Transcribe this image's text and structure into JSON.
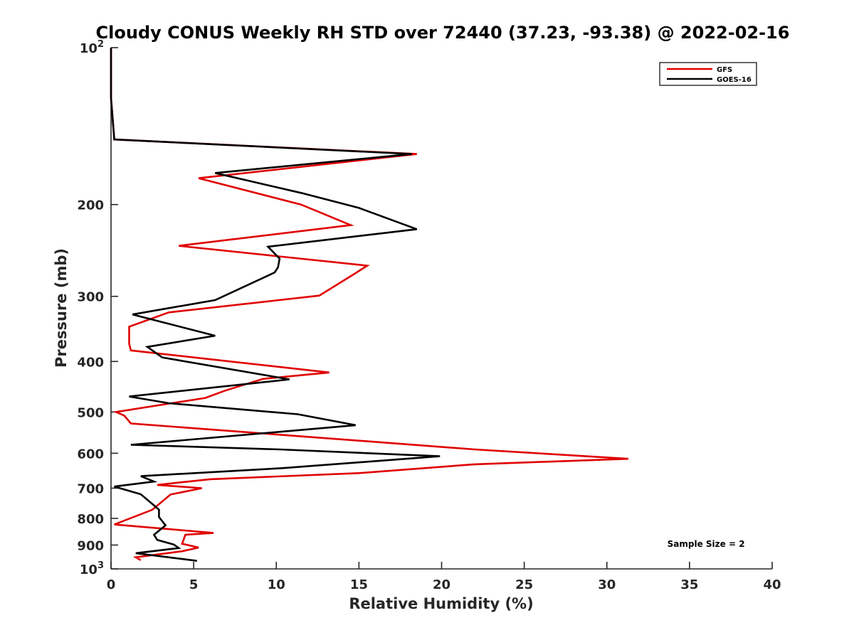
{
  "chart_data": {
    "type": "line",
    "title": "Cloudy CONUS Weekly RH STD over 72440 (37.23, -93.38) @ 2022-02-16",
    "xlabel": "Relative Humidity (%)",
    "ylabel": "Pressure (mb)",
    "xlim": [
      0,
      40
    ],
    "ylim": [
      100,
      1000
    ],
    "y_scale": "log",
    "y_reversed": true,
    "x_ticks": [
      "0",
      "5",
      "10",
      "15",
      "20",
      "25",
      "30",
      "35",
      "40"
    ],
    "y_ticks": [
      {
        "value": 100,
        "base": "10",
        "sup": "2"
      },
      {
        "value": 200,
        "label": "200"
      },
      {
        "value": 300,
        "label": "300"
      },
      {
        "value": 400,
        "label": "400"
      },
      {
        "value": 500,
        "label": "500"
      },
      {
        "value": 600,
        "label": "600"
      },
      {
        "value": 700,
        "label": "700"
      },
      {
        "value": 800,
        "label": "800"
      },
      {
        "value": 900,
        "label": "900"
      },
      {
        "value": 1000,
        "base": "10",
        "sup": "3"
      }
    ],
    "legend_position": "top-right",
    "grid": false,
    "series": [
      {
        "name": "GFS",
        "color": "#e00000",
        "points": [
          [
            0,
            100
          ],
          [
            0,
            125
          ],
          [
            0.2,
            150
          ],
          [
            18.5,
            160
          ],
          [
            5.3,
            178
          ],
          [
            11.5,
            200
          ],
          [
            14.5,
            219
          ],
          [
            4.1,
            240
          ],
          [
            15.5,
            262
          ],
          [
            14.7,
            272
          ],
          [
            12.6,
            299
          ],
          [
            3.5,
            322
          ],
          [
            1.1,
            343
          ],
          [
            1.1,
            370
          ],
          [
            1.2,
            381
          ],
          [
            13.2,
            420
          ],
          [
            9.2,
            432
          ],
          [
            6.9,
            455
          ],
          [
            5.7,
            470
          ],
          [
            0.3,
            500
          ],
          [
            0.8,
            508
          ],
          [
            1.2,
            526
          ],
          [
            22,
            590
          ],
          [
            31.3,
            615
          ],
          [
            22,
            630
          ],
          [
            15,
            655
          ],
          [
            6.0,
            673
          ],
          [
            2.8,
            690
          ],
          [
            5.5,
            700
          ],
          [
            3.6,
            720
          ],
          [
            2.5,
            770
          ],
          [
            0.2,
            822
          ],
          [
            6.2,
            853
          ],
          [
            4.5,
            860
          ],
          [
            4.3,
            895
          ],
          [
            5.3,
            910
          ],
          [
            4.3,
            925
          ],
          [
            1.5,
            950
          ],
          [
            1.8,
            962
          ]
        ]
      },
      {
        "name": "GOES-16",
        "color": "#000000",
        "points": [
          [
            0,
            100
          ],
          [
            0,
            125
          ],
          [
            0.2,
            150
          ],
          [
            18.2,
            160
          ],
          [
            6.3,
            174
          ],
          [
            11.5,
            190
          ],
          [
            15.0,
            203
          ],
          [
            18.5,
            223
          ],
          [
            9.5,
            241
          ],
          [
            10.2,
            254
          ],
          [
            10.1,
            264
          ],
          [
            9.9,
            270
          ],
          [
            6.3,
            305
          ],
          [
            1.3,
            325
          ],
          [
            6.3,
            357
          ],
          [
            2.2,
            375
          ],
          [
            3.1,
            393
          ],
          [
            10.8,
            433
          ],
          [
            1.1,
            467
          ],
          [
            3.5,
            481
          ],
          [
            11.3,
            505
          ],
          [
            14.8,
            530
          ],
          [
            1.2,
            578
          ],
          [
            10.2,
            590
          ],
          [
            19.9,
            608
          ],
          [
            10.3,
            641
          ],
          [
            1.8,
            664
          ],
          [
            2.6,
            680
          ],
          [
            0.2,
            695
          ],
          [
            1.8,
            719
          ],
          [
            2.5,
            751
          ],
          [
            2.9,
            770
          ],
          [
            2.9,
            795
          ],
          [
            3.3,
            825
          ],
          [
            2.6,
            860
          ],
          [
            2.8,
            880
          ],
          [
            3.8,
            898
          ],
          [
            4.1,
            912
          ],
          [
            1.5,
            933
          ],
          [
            5.2,
            965
          ]
        ]
      }
    ],
    "annotations": [
      {
        "text": "Sample Size = 2",
        "x": 36.0,
        "y": 907
      }
    ]
  }
}
